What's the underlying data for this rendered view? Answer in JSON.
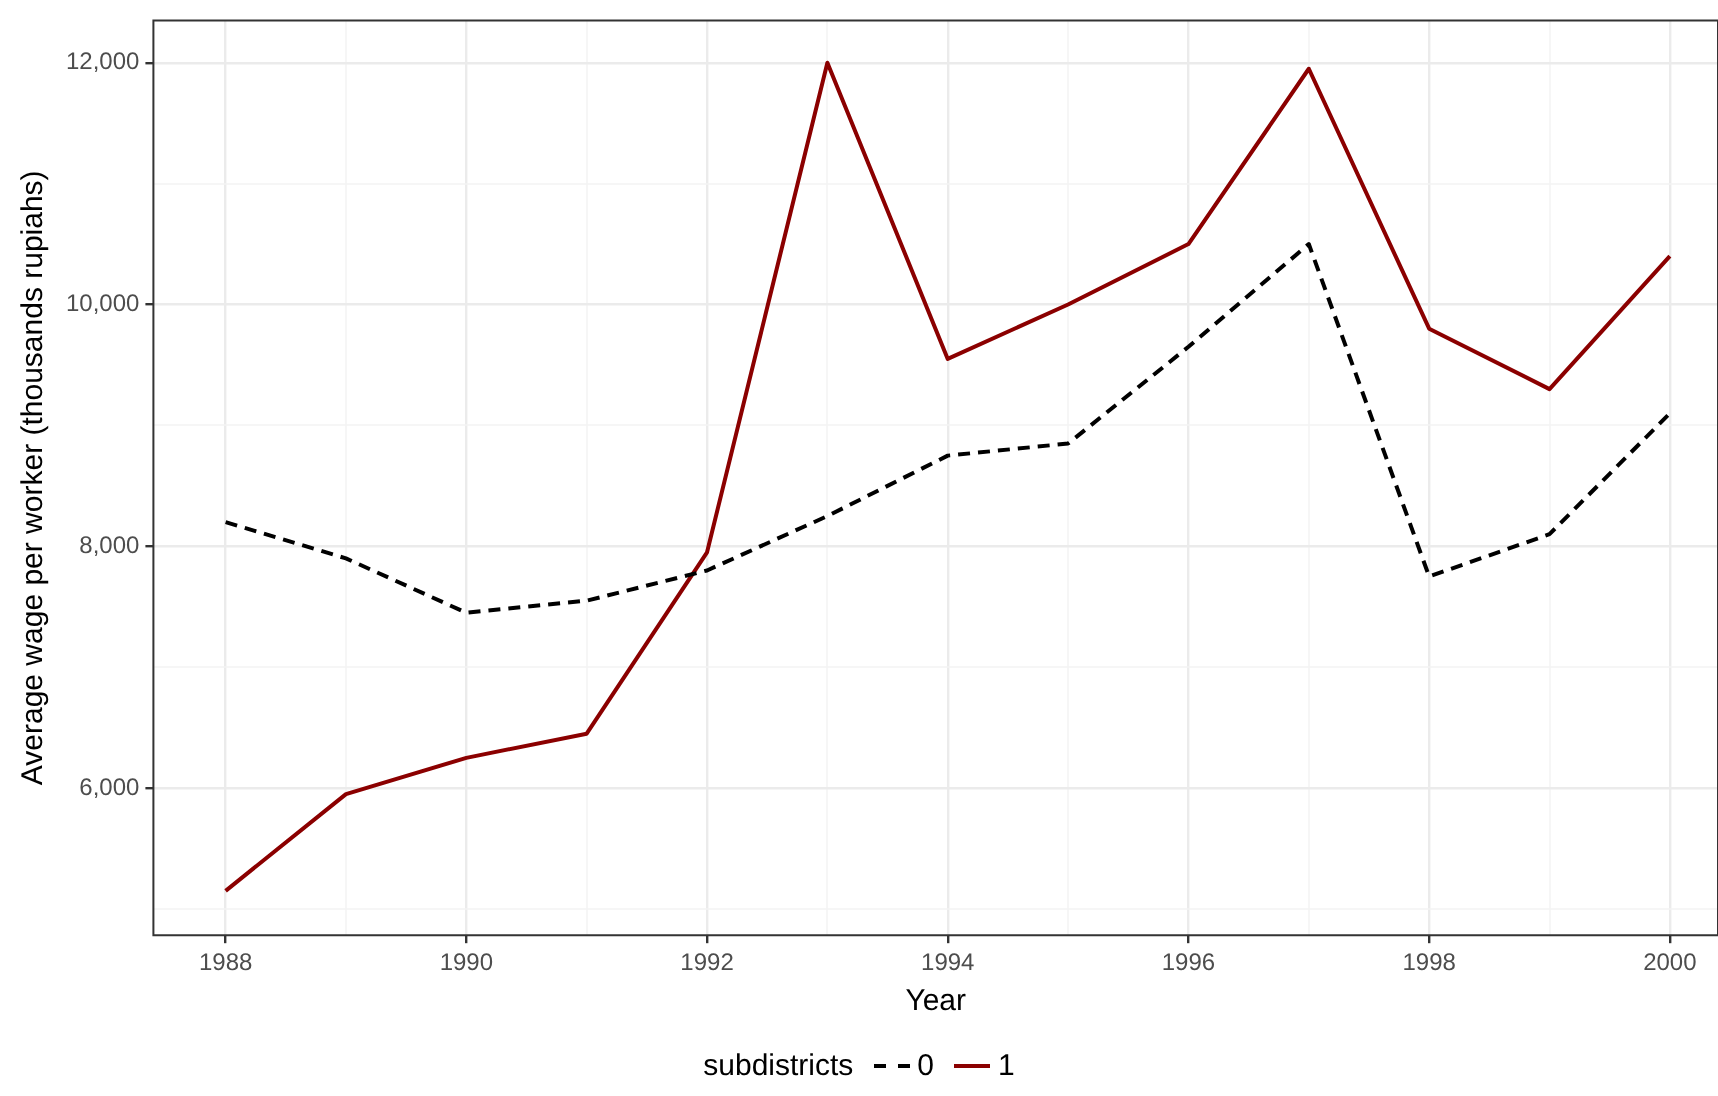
{
  "chart_data": {
    "type": "line",
    "xlabel": "Year",
    "ylabel": "Average wage per worker (thousands rupiahs)",
    "legend_title": "subdistricts",
    "legend": "bottom",
    "grid": true,
    "x": [
      1988,
      1989,
      1990,
      1991,
      1992,
      1993,
      1994,
      1995,
      1996,
      1997,
      1998,
      1999,
      2000
    ],
    "xlim": [
      1987.4,
      2000.4
    ],
    "ylim": [
      4783,
      12350
    ],
    "xticks": [
      1988,
      {
        "value": 1989,
        "label": null
      },
      1990,
      {
        "value": 1991,
        "label": null
      },
      1992,
      {
        "value": 1993,
        "label": null
      },
      1994,
      {
        "value": 1995,
        "label": null
      },
      1996,
      {
        "value": 1997,
        "label": null
      },
      1998,
      {
        "value": 1999,
        "label": null
      },
      2000
    ],
    "yticks": [
      {
        "value": 5000,
        "label": null
      },
      {
        "value": 6000,
        "label": "6,000"
      },
      {
        "value": 7000,
        "label": null
      },
      {
        "value": 8000,
        "label": "8,000"
      },
      {
        "value": 9000,
        "label": null
      },
      {
        "value": 10000,
        "label": "10,000"
      },
      {
        "value": 11000,
        "label": null
      },
      {
        "value": 12000,
        "label": "12,000"
      }
    ],
    "series": [
      {
        "name": "0",
        "color": "#000000",
        "line_style": "dashed",
        "values": [
          8200,
          7900,
          7450,
          7550,
          7800,
          8250,
          8750,
          8850,
          9650,
          10500,
          7750,
          8100,
          9100
        ]
      },
      {
        "name": "1",
        "color": "#8b0000",
        "line_style": "solid",
        "values": [
          5150,
          5950,
          6250,
          6450,
          7950,
          12000,
          9550,
          10000,
          10500,
          11950,
          9800,
          9300,
          10400
        ]
      }
    ]
  }
}
